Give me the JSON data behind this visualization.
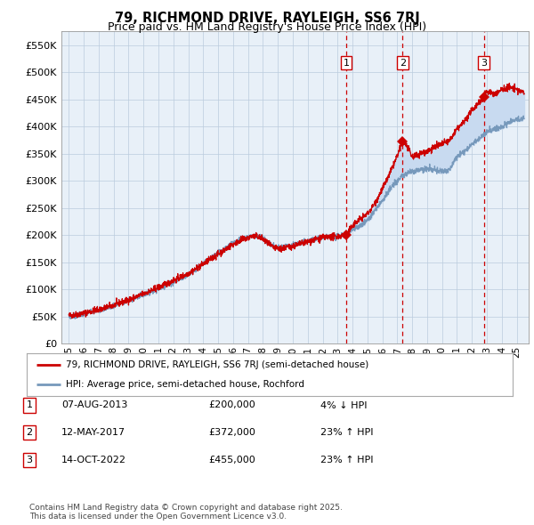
{
  "title": "79, RICHMOND DRIVE, RAYLEIGH, SS6 7RJ",
  "subtitle": "Price paid vs. HM Land Registry's House Price Index (HPI)",
  "ylabel_ticks": [
    "£0",
    "£50K",
    "£100K",
    "£150K",
    "£200K",
    "£250K",
    "£300K",
    "£350K",
    "£400K",
    "£450K",
    "£500K",
    "£550K"
  ],
  "ylabel_values": [
    0,
    50000,
    100000,
    150000,
    200000,
    250000,
    300000,
    350000,
    400000,
    450000,
    500000,
    550000
  ],
  "ylim": [
    0,
    575000
  ],
  "xlim_start": 1994.5,
  "xlim_end": 2025.8,
  "xtick_years": [
    1995,
    1996,
    1997,
    1998,
    1999,
    2000,
    2001,
    2002,
    2003,
    2004,
    2005,
    2006,
    2007,
    2008,
    2009,
    2010,
    2011,
    2012,
    2013,
    2014,
    2015,
    2016,
    2017,
    2018,
    2019,
    2020,
    2021,
    2022,
    2023,
    2024,
    2025
  ],
  "transactions": [
    {
      "date_num": 2013.59,
      "price": 200000,
      "label": "1"
    },
    {
      "date_num": 2017.36,
      "price": 372000,
      "label": "2"
    },
    {
      "date_num": 2022.79,
      "price": 455000,
      "label": "3"
    }
  ],
  "shade_from": 2013.59,
  "legend_line1": "79, RICHMOND DRIVE, RAYLEIGH, SS6 7RJ (semi-detached house)",
  "legend_line2": "HPI: Average price, semi-detached house, Rochford",
  "table_rows": [
    {
      "num": "1",
      "date": "07-AUG-2013",
      "price": "£200,000",
      "hpi": "4% ↓ HPI"
    },
    {
      "num": "2",
      "date": "12-MAY-2017",
      "price": "£372,000",
      "hpi": "23% ↑ HPI"
    },
    {
      "num": "3",
      "date": "14-OCT-2022",
      "price": "£455,000",
      "hpi": "23% ↑ HPI"
    }
  ],
  "footer": "Contains HM Land Registry data © Crown copyright and database right 2025.\nThis data is licensed under the Open Government Licence v3.0.",
  "bg_color": "#ffffff",
  "plot_bg_color": "#e8f0f8",
  "grid_color": "#bbccdd",
  "red_line_color": "#cc0000",
  "blue_line_color": "#7799bb",
  "shade_color": "#c8daf0",
  "vline_color": "#cc0000",
  "transaction_box_color": "#cc0000"
}
